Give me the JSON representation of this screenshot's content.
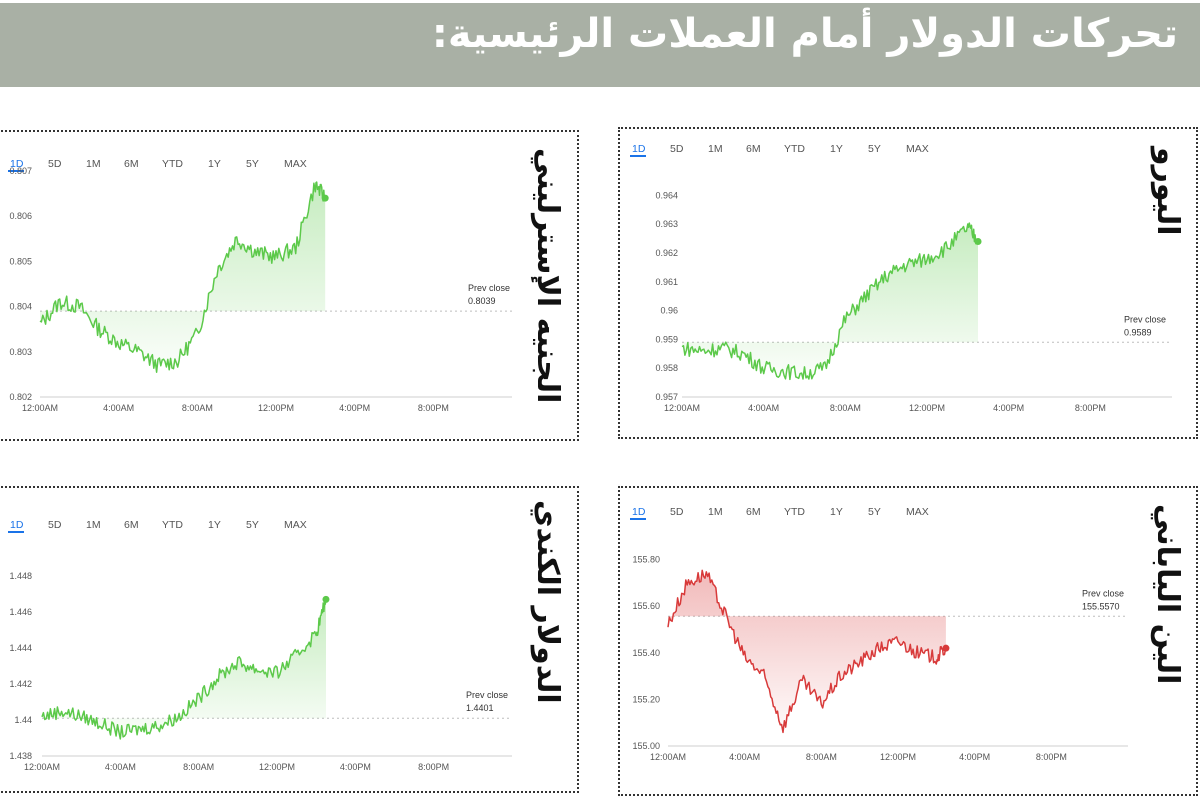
{
  "header": {
    "title": "تحركات الدولار أمام العملات الرئيسية:"
  },
  "colors": {
    "up": "#5cc94a",
    "down": "#d83a3a",
    "accent": "#1a73e8",
    "banner": "#a9b0a5"
  },
  "ranges": [
    "1D",
    "5D",
    "1M",
    "6M",
    "YTD",
    "1Y",
    "5Y",
    "MAX"
  ],
  "x_ticks": [
    "12:00 AM",
    "4:00 AM",
    "8:00 AM",
    "12:00 PM",
    "4:00 PM",
    "8:00 PM"
  ],
  "prev_close_label": "Prev close",
  "chart_data": [
    {
      "id": "gbp",
      "currency": "الجنيه الإسترليني",
      "type": "line",
      "trend": "up",
      "ylim": [
        0.802,
        0.807
      ],
      "y_ticks": [
        "0.807",
        "0.806",
        "0.805",
        "0.804",
        "0.803",
        "0.802"
      ],
      "prev_close": "0.8039",
      "prev_close_value": 0.8039,
      "x_hours": [
        0,
        1,
        2,
        3,
        4,
        5,
        6,
        7,
        8,
        9,
        10,
        11,
        12,
        13,
        14,
        14.5
      ],
      "values": [
        0.8036,
        0.8041,
        0.804,
        0.8035,
        0.8032,
        0.803,
        0.8027,
        0.8028,
        0.8034,
        0.8048,
        0.8055,
        0.8052,
        0.8051,
        0.8053,
        0.8067,
        0.8064
      ]
    },
    {
      "id": "eur",
      "currency": "اليورو",
      "type": "line",
      "trend": "up",
      "ylim": [
        0.957,
        0.9645
      ],
      "y_ticks": [
        "0.964",
        "0.963",
        "0.962",
        "0.961",
        "0.96",
        "0.959",
        "0.958",
        "0.957"
      ],
      "prev_close": "0.9589",
      "prev_close_value": 0.9589,
      "x_hours": [
        0,
        1,
        2,
        3,
        4,
        5,
        6,
        7,
        8,
        9,
        10,
        11,
        12,
        13,
        14,
        14.5
      ],
      "values": [
        0.9587,
        0.9586,
        0.9587,
        0.9585,
        0.958,
        0.9579,
        0.9578,
        0.958,
        0.9597,
        0.9605,
        0.9612,
        0.9616,
        0.9618,
        0.9622,
        0.9629,
        0.9624
      ]
    },
    {
      "id": "cad",
      "currency": "الدولار الكندي",
      "type": "line",
      "trend": "up",
      "ylim": [
        1.438,
        1.449
      ],
      "y_ticks": [
        "1.448",
        "1.446",
        "1.444",
        "1.442",
        "1.44",
        "1.438"
      ],
      "prev_close": "1.4401",
      "prev_close_value": 1.4401,
      "x_hours": [
        0,
        1,
        2,
        3,
        4,
        5,
        6,
        7,
        8,
        9,
        10,
        11,
        12,
        13,
        14,
        14.5
      ],
      "values": [
        1.4402,
        1.4405,
        1.4402,
        1.4398,
        1.4393,
        1.4395,
        1.4397,
        1.4402,
        1.4412,
        1.4424,
        1.4432,
        1.4428,
        1.4426,
        1.4436,
        1.4448,
        1.4467
      ]
    },
    {
      "id": "jpy",
      "currency": "الين الياباني",
      "type": "line",
      "trend": "down",
      "ylim": [
        155.0,
        155.85
      ],
      "y_ticks": [
        "155.80",
        "155.60",
        "155.40",
        "155.20",
        "155.00"
      ],
      "prev_close": "155.5570",
      "prev_close_value": 155.557,
      "x_hours": [
        0,
        1,
        2,
        3,
        4,
        5,
        6,
        7,
        8,
        9,
        10,
        11,
        12,
        13,
        14,
        14.5
      ],
      "values": [
        155.52,
        155.7,
        155.74,
        155.56,
        155.38,
        155.3,
        155.08,
        155.28,
        155.18,
        155.3,
        155.36,
        155.42,
        155.45,
        155.4,
        155.38,
        155.42
      ]
    }
  ]
}
